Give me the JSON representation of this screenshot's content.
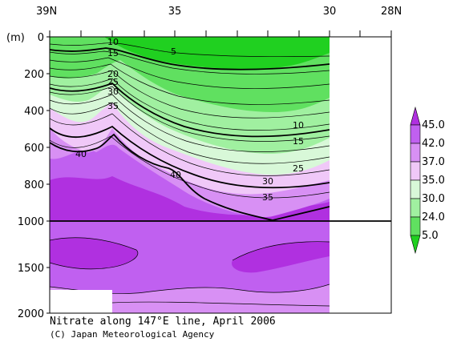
{
  "chart_data": {
    "type": "heatmap",
    "title": "Nitrate along 147°E line, April 2006",
    "credit": "(C) Japan Meteorological Agency",
    "ylabel": "(m)",
    "x_ticks": [
      "39N",
      "35",
      "30",
      "28N"
    ],
    "y_ticks": [
      0,
      200,
      400,
      600,
      800,
      1000,
      1500,
      2000
    ],
    "x_range_latitude": [
      39,
      28
    ],
    "observed_latitude_range": [
      39,
      30
    ],
    "depth_range": [
      0,
      2000
    ],
    "axis_break_depth": 1000,
    "colorbar": {
      "levels": [
        45.0,
        42.0,
        37.0,
        35.0,
        30.0,
        24.0,
        5.0
      ],
      "colors": [
        "#b030e0",
        "#c060f0",
        "#d890f4",
        "#f0c8f8",
        "#d8f8d8",
        "#a0f0a0",
        "#60e060",
        "#20d020"
      ]
    },
    "contour_labels": [
      {
        "value": "10"
      },
      {
        "value": "15"
      },
      {
        "value": "5"
      },
      {
        "value": "20"
      },
      {
        "value": "25"
      },
      {
        "value": "30"
      },
      {
        "value": "35"
      },
      {
        "value": "40"
      },
      {
        "value": "40"
      },
      {
        "value": "10"
      },
      {
        "value": "15"
      },
      {
        "value": "25"
      },
      {
        "value": "30"
      },
      {
        "value": "35"
      }
    ]
  }
}
